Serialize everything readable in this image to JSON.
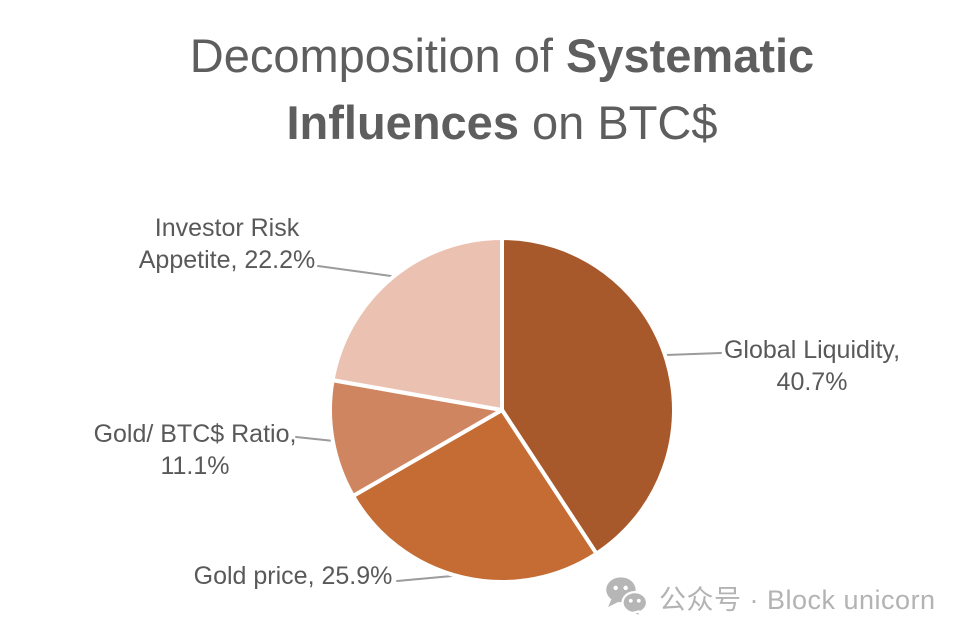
{
  "title": {
    "prefix": "Decomposition of ",
    "emphasis": "Systematic Influences",
    "suffix": " on BTC$"
  },
  "chart_data": {
    "type": "pie",
    "title": "Decomposition of Systematic Influences on BTC$",
    "start_angle_deg": 0,
    "direction": "clockwise",
    "units": "percent",
    "slice_gap_color": "#ffffff",
    "slices": [
      {
        "name": "Global Liquidity",
        "value_pct": 40.7,
        "color": "#A8592B",
        "label_lines": [
          "Global Liquidity,",
          "40.7%"
        ]
      },
      {
        "name": "Gold price",
        "value_pct": 25.9,
        "color": "#C46C34",
        "label_lines": [
          "Gold price, 25.9%"
        ]
      },
      {
        "name": "Gold/ BTC$ Ratio",
        "value_pct": 11.1,
        "color": "#CF8660",
        "label_lines": [
          "Gold/ BTC$ Ratio,",
          "11.1%"
        ]
      },
      {
        "name": "Investor Risk Appetite",
        "value_pct": 22.2,
        "color": "#EBC1B1",
        "label_lines": [
          "Investor Risk",
          "Appetite, 22.2%"
        ]
      }
    ],
    "label_color": "#595959",
    "leader_line_color": "#9b9b9b"
  },
  "watermark": {
    "icon": "wechat-icon",
    "text": "公众号 · Block unicorn"
  }
}
